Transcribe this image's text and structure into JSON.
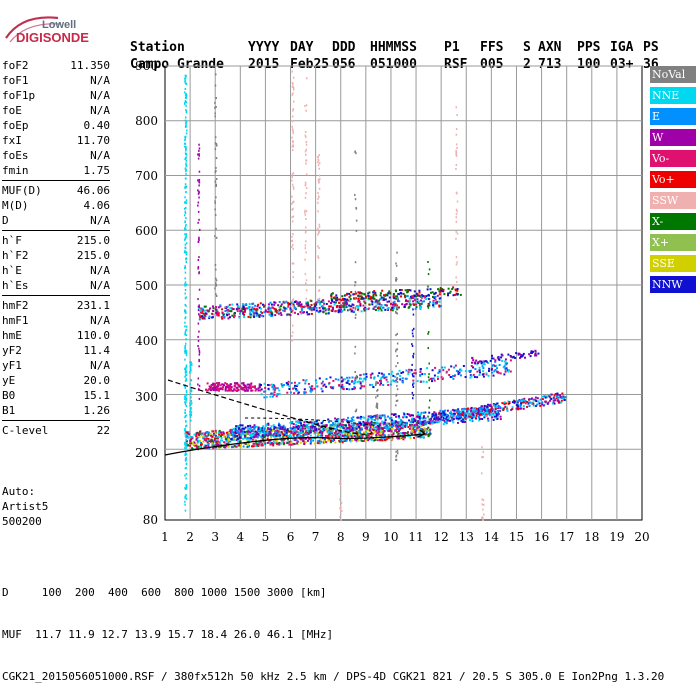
{
  "logo": {
    "line1": "Lowell",
    "line2": "DIGISONDE"
  },
  "header": {
    "labels": [
      "Station",
      "YYYY",
      "DAY",
      "DDD",
      "HHMMSS",
      "P1",
      "FFS",
      "S",
      "AXN",
      "PPS",
      "IGA",
      "PS"
    ],
    "values": [
      "Campo Grande",
      "2015",
      "Feb25",
      "056",
      "051000",
      "RSF",
      "005",
      "2",
      "713",
      "100",
      "03+",
      "36"
    ]
  },
  "params": {
    "g1": [
      {
        "name": "foF2",
        "value": "11.350"
      },
      {
        "name": "foF1",
        "value": "N/A"
      },
      {
        "name": "foF1p",
        "value": "N/A"
      },
      {
        "name": "foE",
        "value": "N/A"
      },
      {
        "name": "foEp",
        "value": "0.40"
      },
      {
        "name": "fxI",
        "value": "11.70"
      },
      {
        "name": "foEs",
        "value": "N/A"
      },
      {
        "name": "fmin",
        "value": "1.75"
      }
    ],
    "g2": [
      {
        "name": "MUF(D)",
        "value": "46.06"
      },
      {
        "name": "M(D)",
        "value": "4.06"
      },
      {
        "name": "D",
        "value": "N/A"
      }
    ],
    "g3": [
      {
        "name": "h`F",
        "value": "215.0"
      },
      {
        "name": "h`F2",
        "value": "215.0"
      },
      {
        "name": "h`E",
        "value": "N/A"
      },
      {
        "name": "h`Es",
        "value": "N/A"
      }
    ],
    "g4": [
      {
        "name": "hmF2",
        "value": "231.1"
      },
      {
        "name": "hmF1",
        "value": "N/A"
      },
      {
        "name": "hmE",
        "value": "110.0"
      },
      {
        "name": "yF2",
        "value": "11.4"
      },
      {
        "name": "yF1",
        "value": "N/A"
      },
      {
        "name": "yE",
        "value": "20.0"
      },
      {
        "name": "B0",
        "value": "15.1"
      },
      {
        "name": "B1",
        "value": "1.26"
      }
    ],
    "g5": [
      {
        "name": "C-level",
        "value": "22"
      }
    ]
  },
  "auto": {
    "line1": "Auto:",
    "line2": "Artist5",
    "line3": "500200"
  },
  "axes": {
    "y_ticks": [
      "900",
      "800",
      "700",
      "600",
      "500",
      "400",
      "300",
      "200",
      "80"
    ],
    "x_ticks": [
      "1",
      "2",
      "3",
      "4",
      "5",
      "6",
      "7",
      "8",
      "9",
      "10",
      "11",
      "12",
      "13",
      "14",
      "15",
      "16",
      "17",
      "18",
      "19",
      "20"
    ]
  },
  "legend": [
    {
      "label": "NoVal",
      "color": "#808080"
    },
    {
      "label": "NNE",
      "color": "#00d8f0"
    },
    {
      "label": "E",
      "color": "#0090ff"
    },
    {
      "label": "W",
      "color": "#a000a8"
    },
    {
      "label": "Vo-",
      "color": "#e01070"
    },
    {
      "label": "Vo+",
      "color": "#ee0000"
    },
    {
      "label": "SSW",
      "color": "#f0b0b0"
    },
    {
      "label": "X-",
      "color": "#007800"
    },
    {
      "label": "X+",
      "color": "#90c050"
    },
    {
      "label": "SSE",
      "color": "#d0d000"
    },
    {
      "label": "NNW",
      "color": "#1010d0"
    }
  ],
  "footer": {
    "line1": "D     100  200  400  600  800 1000 1500 3000 [km]",
    "line2": "MUF  11.7 11.9 12.7 13.9 15.7 18.4 26.0 46.1 [MHz]",
    "line3": "CGK21_2015056051000.RSF / 380fx512h 50 kHz 2.5 km / DPS-4D CGK21 821 / 20.5 S 305.0 E Ion2Png 1.3.20"
  }
}
